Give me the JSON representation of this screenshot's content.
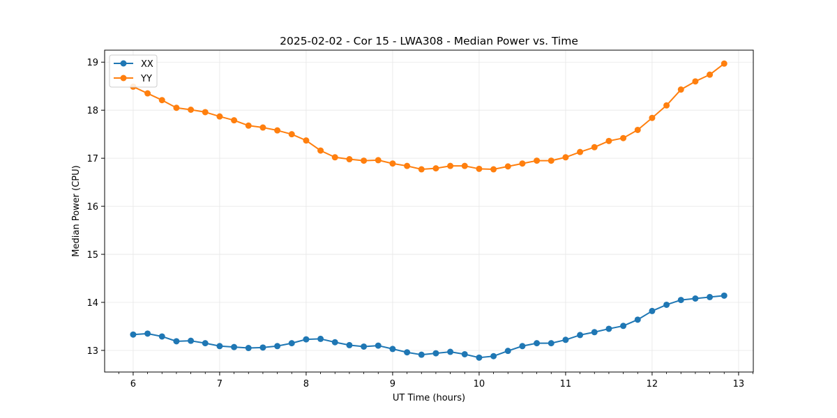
{
  "chart_data": {
    "type": "line",
    "title": "2025-02-02 - Cor 15 - LWA308 - Median Power vs. Time",
    "xlabel": "UT Time (hours)",
    "ylabel": "Median Power (CPU)",
    "xlim": [
      5.67,
      13.17
    ],
    "ylim": [
      12.55,
      19.25
    ],
    "xticks": [
      6,
      7,
      8,
      9,
      10,
      11,
      12,
      13
    ],
    "yticks": [
      13,
      14,
      15,
      16,
      17,
      18,
      19
    ],
    "grid": true,
    "legend_position": "top-left",
    "x": [
      6.0,
      6.1667,
      6.3333,
      6.5,
      6.6667,
      6.8333,
      7.0,
      7.1667,
      7.3333,
      7.5,
      7.6667,
      7.8333,
      8.0,
      8.1667,
      8.3333,
      8.5,
      8.6667,
      8.8333,
      9.0,
      9.1667,
      9.3333,
      9.5,
      9.6667,
      9.8333,
      10.0,
      10.1667,
      10.3333,
      10.5,
      10.6667,
      10.8333,
      11.0,
      11.1667,
      11.3333,
      11.5,
      11.6667,
      11.8333,
      12.0,
      12.1667,
      12.3333,
      12.5,
      12.6667,
      12.8333
    ],
    "series": [
      {
        "name": "XX",
        "color": "#1f77b4",
        "values": [
          13.33,
          13.35,
          13.29,
          13.19,
          13.2,
          13.15,
          13.09,
          13.07,
          13.05,
          13.06,
          13.09,
          13.15,
          13.23,
          13.24,
          13.17,
          13.11,
          13.08,
          13.1,
          13.03,
          12.96,
          12.91,
          12.94,
          12.97,
          12.92,
          12.85,
          12.88,
          12.99,
          13.09,
          13.15,
          13.15,
          13.22,
          13.32,
          13.38,
          13.45,
          13.51,
          13.64,
          13.82,
          13.95,
          14.05,
          14.08,
          14.11,
          14.14
        ]
      },
      {
        "name": "YY",
        "color": "#ff7f0e",
        "values": [
          18.49,
          18.35,
          18.21,
          18.05,
          18.01,
          17.96,
          17.87,
          17.79,
          17.68,
          17.64,
          17.58,
          17.5,
          17.37,
          17.16,
          17.02,
          16.98,
          16.95,
          16.96,
          16.89,
          16.84,
          16.77,
          16.79,
          16.84,
          16.84,
          16.78,
          16.77,
          16.83,
          16.89,
          16.95,
          16.95,
          17.02,
          17.13,
          17.23,
          17.36,
          17.42,
          17.59,
          17.84,
          18.1,
          18.43,
          18.6,
          18.74,
          18.97
        ]
      }
    ]
  }
}
